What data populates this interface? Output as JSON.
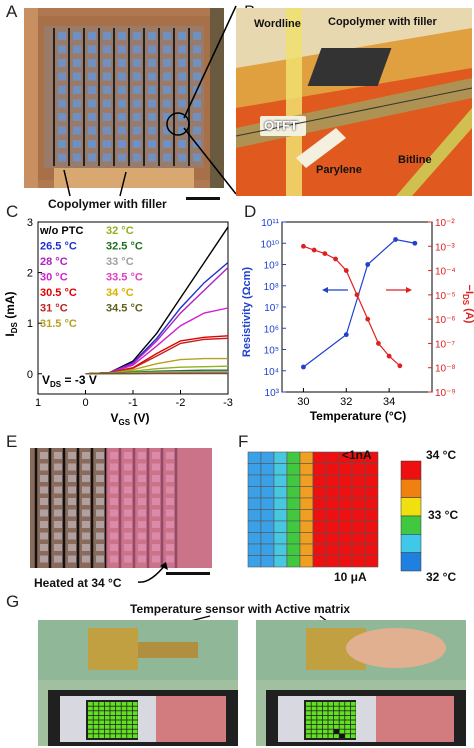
{
  "panels": {
    "A": {
      "letter": "A",
      "label": "Copolymer with filler"
    },
    "B": {
      "letter": "B",
      "wordline": "Wordline",
      "copolymer": "Copolymer with filler",
      "otft": "OTFT",
      "parylene": "Parylene",
      "bitline": "Bitline"
    },
    "C": {
      "letter": "C",
      "ylabel": "I",
      "ylabel_sub": "DS",
      "ylabel_unit": " (mA)",
      "xlabel": "V",
      "xlabel_sub": "GS",
      "xlabel_unit": " (V)",
      "vds_label": "V",
      "vds_sub": "DS",
      "vds_value": " = -3 V"
    },
    "D": {
      "letter": "D",
      "ylabel_left": "Resistivity (Ωcm)",
      "ylabel_right": "−I",
      "ylabel_right_sub": "DS",
      "ylabel_right_unit": " (A)",
      "xlabel": "Temperature (°C)"
    },
    "E": {
      "letter": "E",
      "label": "Heated at 34 °C"
    },
    "F": {
      "letter": "F",
      "top_label": "<1nA",
      "bottom_label": "10 μA",
      "scale_top": "34 °C",
      "scale_mid": "33 °C",
      "scale_bot": "32 °C"
    },
    "G": {
      "letter": "G",
      "title": "Temperature sensor with Active matrix"
    }
  },
  "chart_data": [
    {
      "type": "line",
      "panel": "C",
      "xlabel": "VGS (V)",
      "ylabel": "IDS (mA)",
      "xlim": [
        1,
        -3
      ],
      "ylim": [
        -0.4,
        3
      ],
      "xticks": [
        1,
        0,
        -1,
        -2,
        -3
      ],
      "yticks": [
        0,
        1,
        2,
        3
      ],
      "x": [
        0,
        -0.5,
        -1,
        -1.5,
        -2,
        -2.5,
        -3
      ],
      "series": [
        {
          "name": "w/o PTC",
          "color": "#000000",
          "values": [
            0,
            0.02,
            0.25,
            0.8,
            1.5,
            2.2,
            2.9
          ]
        },
        {
          "name": "26.5 °C",
          "color": "#1f2fd0",
          "values": [
            0,
            0.02,
            0.22,
            0.7,
            1.3,
            1.8,
            2.2
          ]
        },
        {
          "name": "28 °C",
          "color": "#b020c0",
          "values": [
            0,
            0.02,
            0.2,
            0.65,
            1.2,
            1.65,
            2.1
          ]
        },
        {
          "name": "30 °C",
          "color": "#d020d0",
          "values": [
            0,
            0.02,
            0.17,
            0.55,
            0.95,
            1.2,
            1.3
          ]
        },
        {
          "name": "30.5 °C",
          "color": "#e00000",
          "values": [
            0,
            0.02,
            0.12,
            0.4,
            0.65,
            0.72,
            0.75
          ]
        },
        {
          "name": "31 °C",
          "color": "#c02020",
          "values": [
            0,
            0.02,
            0.11,
            0.35,
            0.6,
            0.68,
            0.7
          ]
        },
        {
          "name": "31.5 °C",
          "color": "#b8a020",
          "values": [
            0,
            0.01,
            0.08,
            0.2,
            0.28,
            0.3,
            0.3
          ]
        },
        {
          "name": "32 °C",
          "color": "#90b020",
          "values": [
            0,
            0.01,
            0.05,
            0.1,
            0.13,
            0.14,
            0.15
          ]
        },
        {
          "name": "32.5 °C",
          "color": "#207020",
          "values": [
            0,
            0.01,
            0.03,
            0.05,
            0.06,
            0.07,
            0.07
          ]
        },
        {
          "name": "33 °C",
          "color": "#a0a0a0",
          "values": [
            0,
            0.005,
            0.02,
            0.03,
            0.04,
            0.04,
            0.04
          ]
        },
        {
          "name": "33.5 °C",
          "color": "#e040c0",
          "values": [
            0,
            0.005,
            0.01,
            0.02,
            0.02,
            0.02,
            0.02
          ]
        },
        {
          "name": "34 °C",
          "color": "#d8b000",
          "values": [
            0,
            0.003,
            0.005,
            0.01,
            0.01,
            0.01,
            0.01
          ]
        },
        {
          "name": "34.5 °C",
          "color": "#606020",
          "values": [
            0,
            0.002,
            0.003,
            0.004,
            0.005,
            0.005,
            0.005
          ]
        }
      ]
    },
    {
      "type": "line",
      "panel": "D",
      "xlabel": "Temperature (°C)",
      "xlim": [
        29,
        36
      ],
      "xticks": [
        30,
        32,
        34
      ],
      "left_axis": {
        "label": "Resistivity (Ωcm)",
        "log": true,
        "ylim": [
          1000.0,
          100000000000.0
        ],
        "ticks": [
          "10³",
          "10⁴",
          "10⁵",
          "10⁶",
          "10⁷",
          "10⁸",
          "10⁹",
          "10¹⁰",
          "10¹¹"
        ]
      },
      "right_axis": {
        "label": "−IDS (A)",
        "log": true,
        "ylim": [
          1e-09,
          0.01
        ],
        "ticks": [
          "10⁻⁹",
          "10⁻⁸",
          "10⁻⁷",
          "10⁻⁶",
          "10⁻⁵",
          "10⁻⁴",
          "10⁻³",
          "10⁻²"
        ]
      },
      "series": [
        {
          "name": "Resistivity",
          "axis": "left",
          "color": "#2040d0",
          "x": [
            30,
            32,
            33,
            34.3,
            35.2
          ],
          "values": [
            15000.0,
            500000.0,
            1000000000.0,
            15000000000.0,
            10000000000.0
          ]
        },
        {
          "name": "-IDS",
          "axis": "right",
          "color": "#e02020",
          "x": [
            30,
            30.5,
            31,
            31.5,
            32,
            32.5,
            33,
            33.5,
            34,
            34.5
          ],
          "values": [
            0.001,
            0.0007,
            0.0005,
            0.0003,
            0.0001,
            1e-05,
            1e-06,
            1e-07,
            3e-08,
            1.2e-08
          ]
        }
      ]
    },
    {
      "type": "heatmap",
      "panel": "F",
      "rows": 10,
      "cols": 10,
      "column_colors": [
        "#3aa0e8",
        "#3aa0e8",
        "#48c8e0",
        "#40c840",
        "#f0a020",
        "#ee1010",
        "#ee1010",
        "#ee1010",
        "#ee1010",
        "#ee1010"
      ],
      "colorbar": [
        "#ee1010",
        "#f08010",
        "#f0e010",
        "#40c840",
        "#40c8e8",
        "#2080e0"
      ]
    }
  ]
}
